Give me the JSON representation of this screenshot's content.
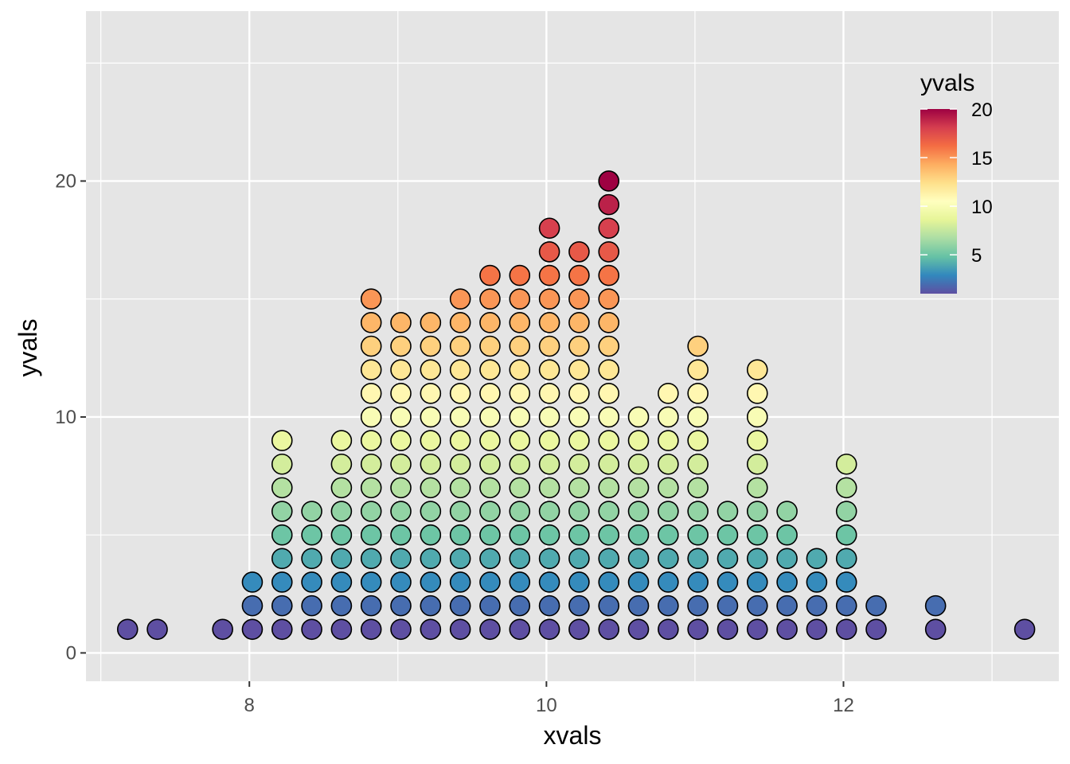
{
  "chart_data": {
    "type": "scatter",
    "subtype": "dotplot",
    "title": "",
    "xlabel": "xvals",
    "ylabel": "yvals",
    "xlim": [
      6.9,
      13.45
    ],
    "ylim": [
      -1.2,
      27.2
    ],
    "x_ticks": [
      8,
      10,
      12
    ],
    "x_tick_labels": [
      "8",
      "10",
      "12"
    ],
    "y_ticks": [
      0,
      10,
      20
    ],
    "y_tick_labels": [
      "0",
      "10",
      "20"
    ],
    "grid": true,
    "legend": {
      "title": "yvals",
      "placement": "top-right-inside",
      "breaks": [
        5,
        10,
        15,
        20
      ],
      "labels": [
        "5",
        "10",
        "15",
        "20"
      ],
      "range": [
        1,
        20
      ],
      "palette": "Spectral (reversed)"
    },
    "colors": {
      "panel_background": "#e5e5e5",
      "grid": "#ffffff",
      "point_outline": "#000000"
    },
    "columns": [
      {
        "x": 7.18,
        "count": 1
      },
      {
        "x": 7.38,
        "count": 1
      },
      {
        "x": 7.82,
        "count": 1
      },
      {
        "x": 8.02,
        "count": 3
      },
      {
        "x": 8.22,
        "count": 9
      },
      {
        "x": 8.42,
        "count": 6
      },
      {
        "x": 8.62,
        "count": 9
      },
      {
        "x": 8.82,
        "count": 15
      },
      {
        "x": 9.02,
        "count": 14
      },
      {
        "x": 9.22,
        "count": 14
      },
      {
        "x": 9.42,
        "count": 15
      },
      {
        "x": 9.62,
        "count": 16
      },
      {
        "x": 9.82,
        "count": 16
      },
      {
        "x": 10.02,
        "count": 18
      },
      {
        "x": 10.22,
        "count": 17
      },
      {
        "x": 10.42,
        "count": 20
      },
      {
        "x": 10.62,
        "count": 10
      },
      {
        "x": 10.82,
        "count": 11
      },
      {
        "x": 11.02,
        "count": 13
      },
      {
        "x": 11.22,
        "count": 6
      },
      {
        "x": 11.42,
        "count": 12
      },
      {
        "x": 11.62,
        "count": 6
      },
      {
        "x": 11.82,
        "count": 4
      },
      {
        "x": 12.02,
        "count": 8
      },
      {
        "x": 12.22,
        "count": 2
      },
      {
        "x": 12.62,
        "count": 2
      },
      {
        "x": 13.22,
        "count": 1
      }
    ]
  }
}
